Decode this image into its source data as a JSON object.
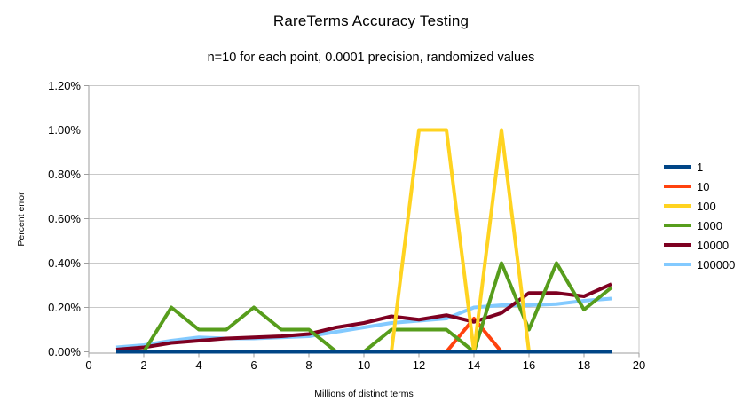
{
  "page": {
    "background": "#ffffff"
  },
  "chart_data": {
    "type": "line",
    "title": "RareTerms Accuracy Testing",
    "subtitle": "n=10 for each point, 0.0001 precision, randomized values",
    "xlabel": "Millions of distinct terms",
    "ylabel": "Percent error",
    "xlim": [
      0,
      20
    ],
    "ylim": [
      0,
      1.2
    ],
    "x_ticks": [
      0,
      2,
      4,
      6,
      8,
      10,
      12,
      14,
      16,
      18,
      20
    ],
    "y_ticks": [
      0,
      0.2,
      0.4,
      0.6,
      0.8,
      1.0,
      1.2
    ],
    "y_tick_labels": [
      "0.00%",
      "0.20%",
      "0.40%",
      "0.60%",
      "0.80%",
      "1.00%",
      "1.20%"
    ],
    "grid": true,
    "legend_position": "right",
    "axis_color": "#9e9e9e",
    "grid_color": "#c9c9c9",
    "x": [
      1,
      2,
      3,
      4,
      5,
      6,
      7,
      8,
      9,
      10,
      11,
      12,
      13,
      14,
      15,
      16,
      17,
      18,
      19
    ],
    "series": [
      {
        "name": "1",
        "color": "#004586",
        "values": [
          0,
          0,
          0,
          0,
          0,
          0,
          0,
          0,
          0,
          0,
          0,
          0,
          0,
          0,
          0,
          0,
          0,
          0,
          0
        ]
      },
      {
        "name": "10",
        "color": "#FF420E",
        "values": [
          0,
          0,
          0,
          0,
          0,
          0,
          0,
          0,
          0,
          0,
          0,
          0,
          0,
          0.15,
          0,
          0,
          0,
          0,
          0
        ]
      },
      {
        "name": "100",
        "color": "#FFD320",
        "values": [
          0,
          0,
          0,
          0,
          0,
          0,
          0,
          0,
          0,
          0,
          0,
          1.0,
          1.0,
          0,
          1.0,
          0,
          0,
          0,
          0
        ]
      },
      {
        "name": "1000",
        "color": "#579D1C",
        "values": [
          0,
          0,
          0.2,
          0.1,
          0.1,
          0.2,
          0.1,
          0.1,
          0,
          0,
          0.1,
          0.1,
          0.1,
          0,
          0.4,
          0.1,
          0.4,
          0.19,
          0.29
        ]
      },
      {
        "name": "10000",
        "color": "#7E0021",
        "values": [
          0.01,
          0.02,
          0.04,
          0.05,
          0.06,
          0.065,
          0.07,
          0.08,
          0.11,
          0.13,
          0.16,
          0.145,
          0.165,
          0.135,
          0.175,
          0.265,
          0.265,
          0.25,
          0.305
        ]
      },
      {
        "name": "100000",
        "color": "#83CAFF",
        "values": [
          0.02,
          0.03,
          0.05,
          0.065,
          0.06,
          0.06,
          0.065,
          0.07,
          0.09,
          0.11,
          0.13,
          0.14,
          0.15,
          0.2,
          0.21,
          0.21,
          0.215,
          0.23,
          0.24
        ]
      }
    ],
    "draw_order": [
      "100000",
      "10",
      "10000",
      "1000",
      "100",
      "1"
    ]
  }
}
